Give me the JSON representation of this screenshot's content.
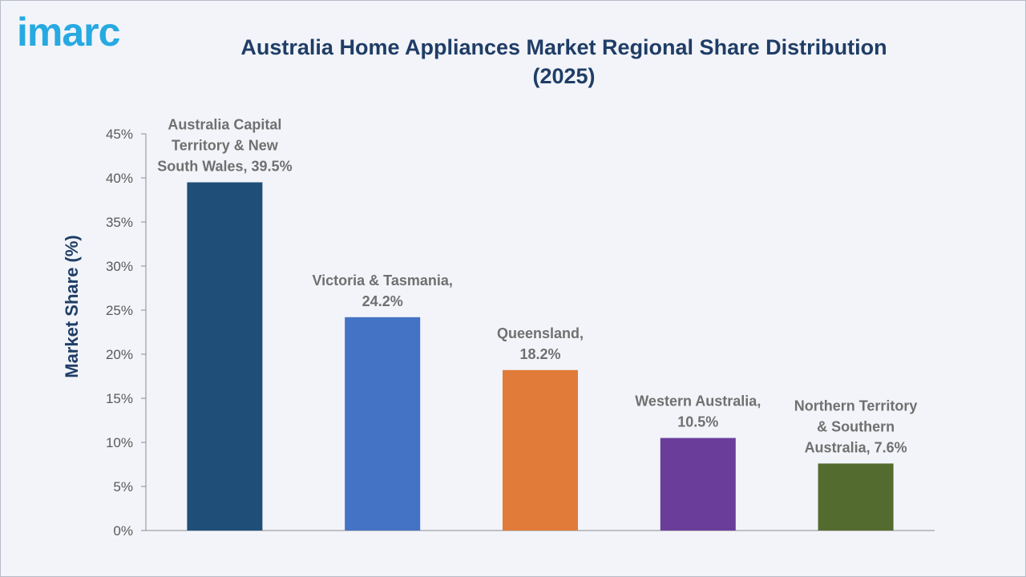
{
  "brand": {
    "logo_text": "imarc",
    "color": "#27a9e1"
  },
  "chart_data": {
    "type": "bar",
    "title": "Australia Home Appliances Market Regional Share Distribution\n(2025)",
    "ylabel": "Market Share (%)",
    "xlabel": "",
    "ylim": [
      0,
      45
    ],
    "yticks": [
      0,
      5,
      10,
      15,
      20,
      25,
      30,
      35,
      40,
      45
    ],
    "ytick_format": "{v}%",
    "categories": [
      "Australia Capital Territory & New South Wales",
      "Victoria & Tasmania",
      "Queensland",
      "Western Australia",
      "Northern Territory & Southern Australia"
    ],
    "values": [
      39.5,
      24.2,
      18.2,
      10.5,
      7.6
    ],
    "data_labels": [
      [
        "Australia Capital",
        "Territory & New",
        "South Wales, 39.5%"
      ],
      [
        "Victoria & Tasmania,",
        "24.2%"
      ],
      [
        "Queensland,",
        "18.2%"
      ],
      [
        "Western Australia,",
        "10.5%"
      ],
      [
        "Northern Territory",
        "& Southern",
        "Australia, 7.6%"
      ]
    ],
    "colors": [
      "#1f4e79",
      "#4472c4",
      "#e07b39",
      "#6a3d9a",
      "#546b2f"
    ],
    "grid": false,
    "legend": "none"
  }
}
